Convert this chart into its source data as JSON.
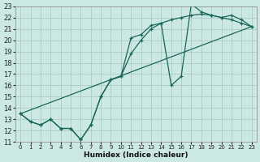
{
  "xlabel": "Humidex (Indice chaleur)",
  "bg_color": "#cce8e4",
  "grid_color": "#b0ceca",
  "line_color": "#1a6655",
  "xlim": [
    -0.5,
    23.5
  ],
  "ylim": [
    11,
    23
  ],
  "xticks": [
    0,
    1,
    2,
    3,
    4,
    5,
    6,
    7,
    8,
    9,
    10,
    11,
    12,
    13,
    14,
    15,
    16,
    17,
    18,
    19,
    20,
    21,
    22,
    23
  ],
  "yticks": [
    11,
    12,
    13,
    14,
    15,
    16,
    17,
    18,
    19,
    20,
    21,
    22,
    23
  ],
  "line1_x": [
    0,
    1,
    2,
    3,
    4,
    5,
    6,
    7,
    8,
    9,
    10,
    11,
    12,
    13,
    14,
    15,
    16,
    17,
    18,
    19,
    20,
    21,
    22,
    23
  ],
  "line1_y": [
    13.5,
    12.8,
    12.5,
    13.0,
    12.2,
    12.2,
    11.2,
    12.5,
    15.0,
    16.5,
    16.8,
    20.2,
    20.5,
    21.3,
    21.5,
    16.0,
    16.8,
    23.2,
    22.5,
    22.2,
    22.0,
    22.2,
    21.8,
    21.2
  ],
  "line2_x": [
    0,
    1,
    2,
    3,
    4,
    5,
    6,
    7,
    8,
    9,
    10,
    11,
    12,
    13,
    14,
    15,
    16,
    17,
    18,
    19,
    20,
    21,
    22,
    23
  ],
  "line2_y": [
    13.5,
    12.8,
    12.5,
    13.0,
    12.2,
    12.2,
    11.2,
    12.5,
    15.0,
    16.5,
    16.8,
    18.8,
    20.0,
    21.0,
    21.5,
    21.8,
    22.0,
    22.2,
    22.3,
    22.2,
    22.0,
    21.8,
    21.5,
    21.2
  ],
  "line3_x": [
    0,
    23
  ],
  "line3_y": [
    13.5,
    21.2
  ]
}
